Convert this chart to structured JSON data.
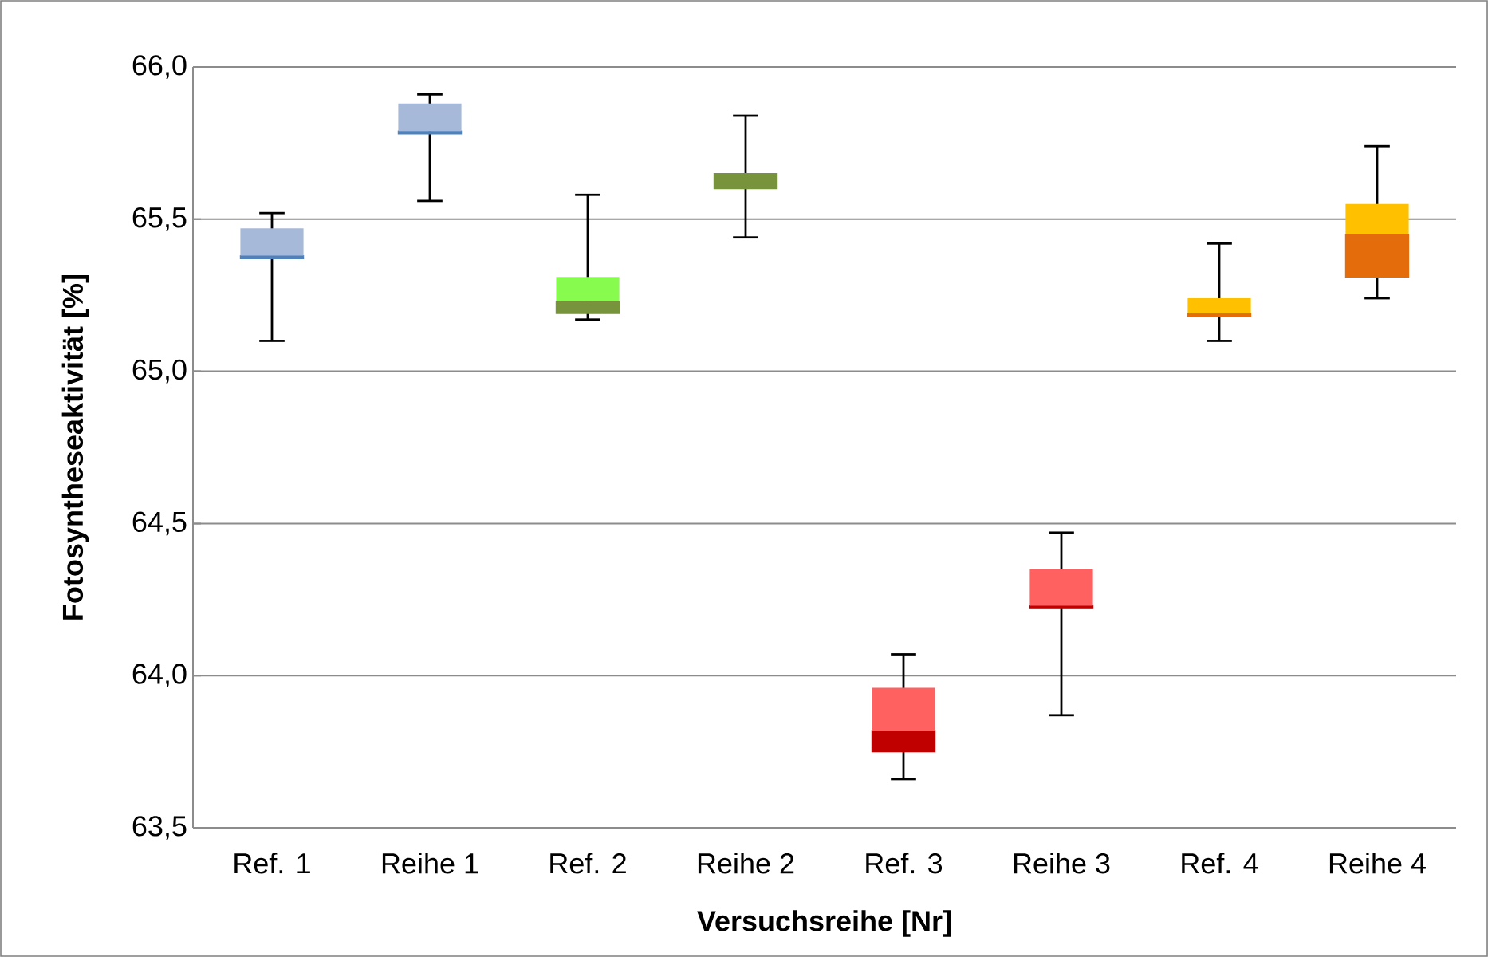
{
  "chart_data": {
    "type": "box",
    "xlabel": "Versuchsreihe [Nr]",
    "ylabel": "Fotosyntheseaktivität [%]",
    "categories": [
      "Ref. 1",
      "Reihe 1",
      "Ref. 2",
      "Reihe 2",
      "Ref. 3",
      "Reihe 3",
      "Ref. 4",
      "Reihe 4"
    ],
    "boxes": [
      {
        "low": 65.1,
        "q1": 65.37,
        "median": 65.38,
        "q3": 65.47,
        "high": 65.52
      },
      {
        "low": 65.56,
        "q1": 65.78,
        "median": 65.79,
        "q3": 65.88,
        "high": 65.91
      },
      {
        "low": 65.17,
        "q1": 65.19,
        "median": 65.23,
        "q3": 65.31,
        "high": 65.58
      },
      {
        "low": 65.44,
        "q1": 65.6,
        "median": 65.65,
        "q3": 65.65,
        "high": 65.84
      },
      {
        "low": 63.66,
        "q1": 63.75,
        "median": 63.82,
        "q3": 63.96,
        "high": 64.07
      },
      {
        "low": 63.87,
        "q1": 64.22,
        "median": 64.23,
        "q3": 64.35,
        "high": 64.47
      },
      {
        "low": 65.1,
        "q1": 65.18,
        "median": 65.19,
        "q3": 65.24,
        "high": 65.42
      },
      {
        "low": 65.24,
        "q1": 65.31,
        "median": 65.45,
        "q3": 65.55,
        "high": 65.74
      }
    ],
    "colors": [
      [
        "#4f81bd",
        "#a7b9d9"
      ],
      [
        "#4f81bd",
        "#a7b9d9"
      ],
      [
        "#77933c",
        "#88fc4e"
      ],
      [
        "#77933c",
        "#77933c"
      ],
      [
        "#c00000",
        "#ff6161"
      ],
      [
        "#c00000",
        "#ff6161"
      ],
      [
        "#e46c0a",
        "#ffc000"
      ],
      [
        "#e46c0a",
        "#ffc000"
      ]
    ],
    "ylim": [
      63.5,
      66.0
    ],
    "yticks": [
      {
        "value": 63.5,
        "label": "63,5"
      },
      {
        "value": 64.0,
        "label": "64,0"
      },
      {
        "value": 64.5,
        "label": "64,5"
      },
      {
        "value": 65.0,
        "label": "65,0"
      },
      {
        "value": 65.5,
        "label": "65,5"
      },
      {
        "value": 66.0,
        "label": "66,0"
      }
    ],
    "grid": "y"
  }
}
